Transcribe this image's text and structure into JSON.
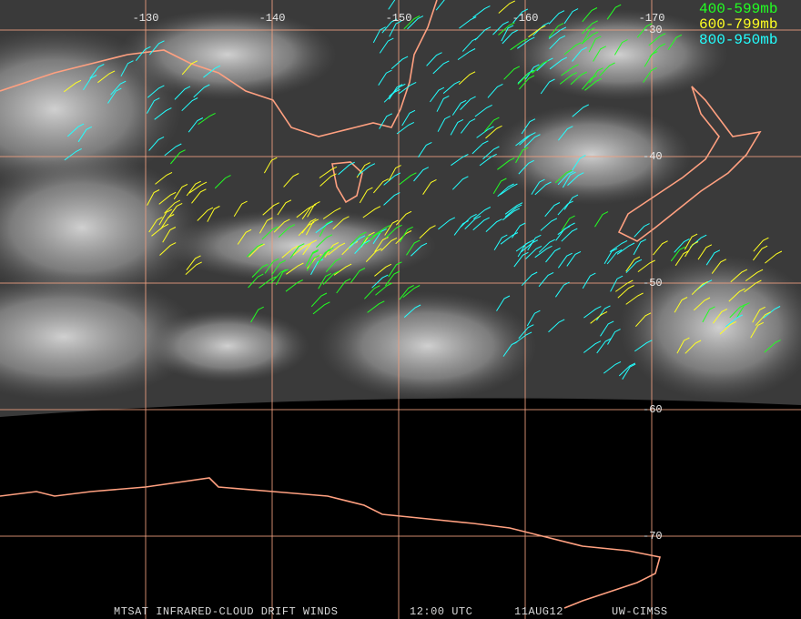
{
  "map": {
    "longitude_labels": [
      "-130",
      "-140",
      "-150",
      "-160",
      "-170"
    ],
    "latitude_labels": [
      "-30",
      "-40",
      "-50",
      "-60",
      "-70"
    ],
    "legend": [
      {
        "label": "400-599mb",
        "color": "#22ff22"
      },
      {
        "label": "600-799mb",
        "color": "#ffff22"
      },
      {
        "label": "800-950mb",
        "color": "#22ffff"
      }
    ],
    "footer": [
      "MTSAT INFRARED-CLOUD DRIFT WINDS",
      "12:00 UTC",
      "11AUG12",
      "UW-CIMSS"
    ]
  }
}
